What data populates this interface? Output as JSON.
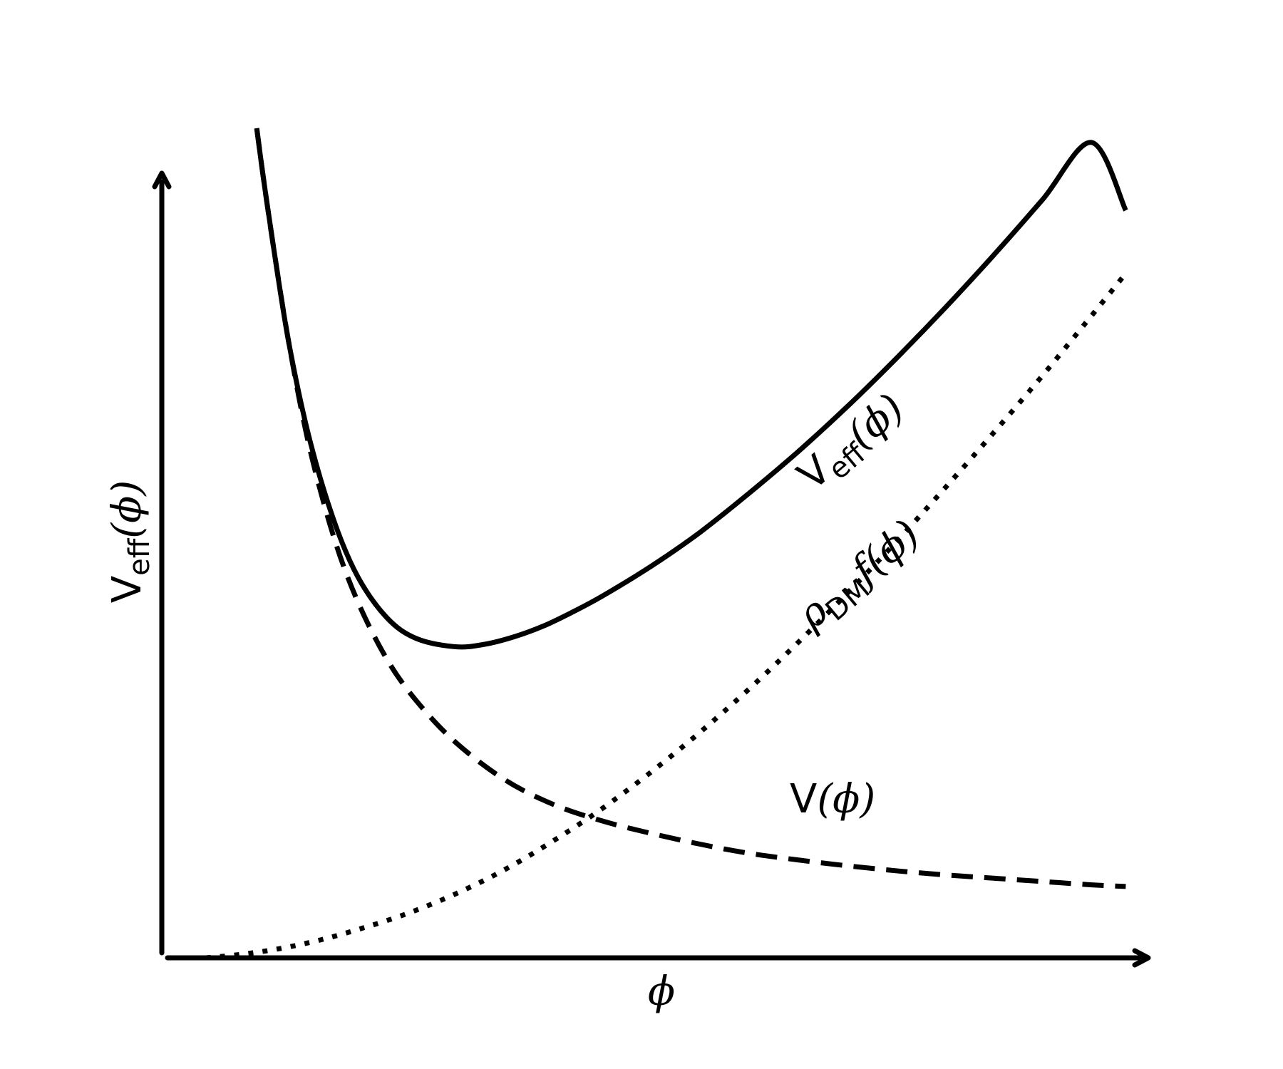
{
  "chart_data": {
    "type": "line",
    "title": "",
    "xlabel": {
      "base": "",
      "sub": "",
      "arg": "ϕ"
    },
    "ylabel": {
      "base": "V",
      "sub": "eff",
      "arg": "(ϕ)"
    },
    "axis_ticks": false,
    "grid": false,
    "legend": "none",
    "xlim": [
      0,
      1
    ],
    "ylim": [
      0,
      1
    ],
    "series": [
      {
        "key": "veff",
        "style": "solid",
        "label": {
          "base": "V",
          "sub": "eff",
          "arg": "(ϕ)"
        },
        "x": [
          0.097,
          0.105,
          0.115,
          0.13,
          0.15,
          0.175,
          0.2,
          0.23,
          0.26,
          0.3,
          0.33,
          0.36,
          0.39,
          0.42,
          0.45,
          0.5,
          0.55,
          0.6,
          0.65,
          0.7,
          0.75,
          0.8,
          0.85,
          0.9,
          0.95,
          0.985
        ],
        "y": [
          1.0,
          0.93,
          0.85,
          0.74,
          0.63,
          0.53,
          0.46,
          0.41,
          0.385,
          0.375,
          0.378,
          0.387,
          0.4,
          0.417,
          0.436,
          0.472,
          0.513,
          0.56,
          0.61,
          0.664,
          0.722,
          0.783,
          0.847,
          0.914,
          0.983,
          0.901
        ]
      },
      {
        "key": "v",
        "style": "dashed",
        "label": {
          "base": "V",
          "sub": "",
          "arg": "(ϕ)"
        },
        "x": [
          0.097,
          0.105,
          0.115,
          0.13,
          0.15,
          0.175,
          0.2,
          0.23,
          0.26,
          0.3,
          0.35,
          0.4,
          0.45,
          0.5,
          0.55,
          0.6,
          0.65,
          0.7,
          0.75,
          0.8,
          0.85,
          0.9,
          0.95,
          0.985
        ],
        "y": [
          1.0,
          0.93,
          0.85,
          0.74,
          0.62,
          0.51,
          0.43,
          0.36,
          0.31,
          0.26,
          0.215,
          0.185,
          0.165,
          0.15,
          0.137,
          0.126,
          0.118,
          0.111,
          0.105,
          0.1,
          0.096,
          0.092,
          0.088,
          0.086
        ]
      },
      {
        "key": "rho",
        "style": "dotted",
        "label": {
          "base": "ρ",
          "sub": "DM",
          "arg": "f(ϕ)"
        },
        "x": [
          0.045,
          0.08,
          0.12,
          0.16,
          0.2,
          0.25,
          0.3,
          0.35,
          0.4,
          0.45,
          0.5,
          0.55,
          0.6,
          0.65,
          0.7,
          0.75,
          0.8,
          0.85,
          0.9,
          0.95,
          0.985
        ],
        "y": [
          0.0,
          0.004,
          0.011,
          0.021,
          0.034,
          0.053,
          0.077,
          0.106,
          0.141,
          0.18,
          0.224,
          0.272,
          0.324,
          0.38,
          0.439,
          0.501,
          0.566,
          0.633,
          0.702,
          0.774,
          0.825
        ]
      }
    ]
  }
}
